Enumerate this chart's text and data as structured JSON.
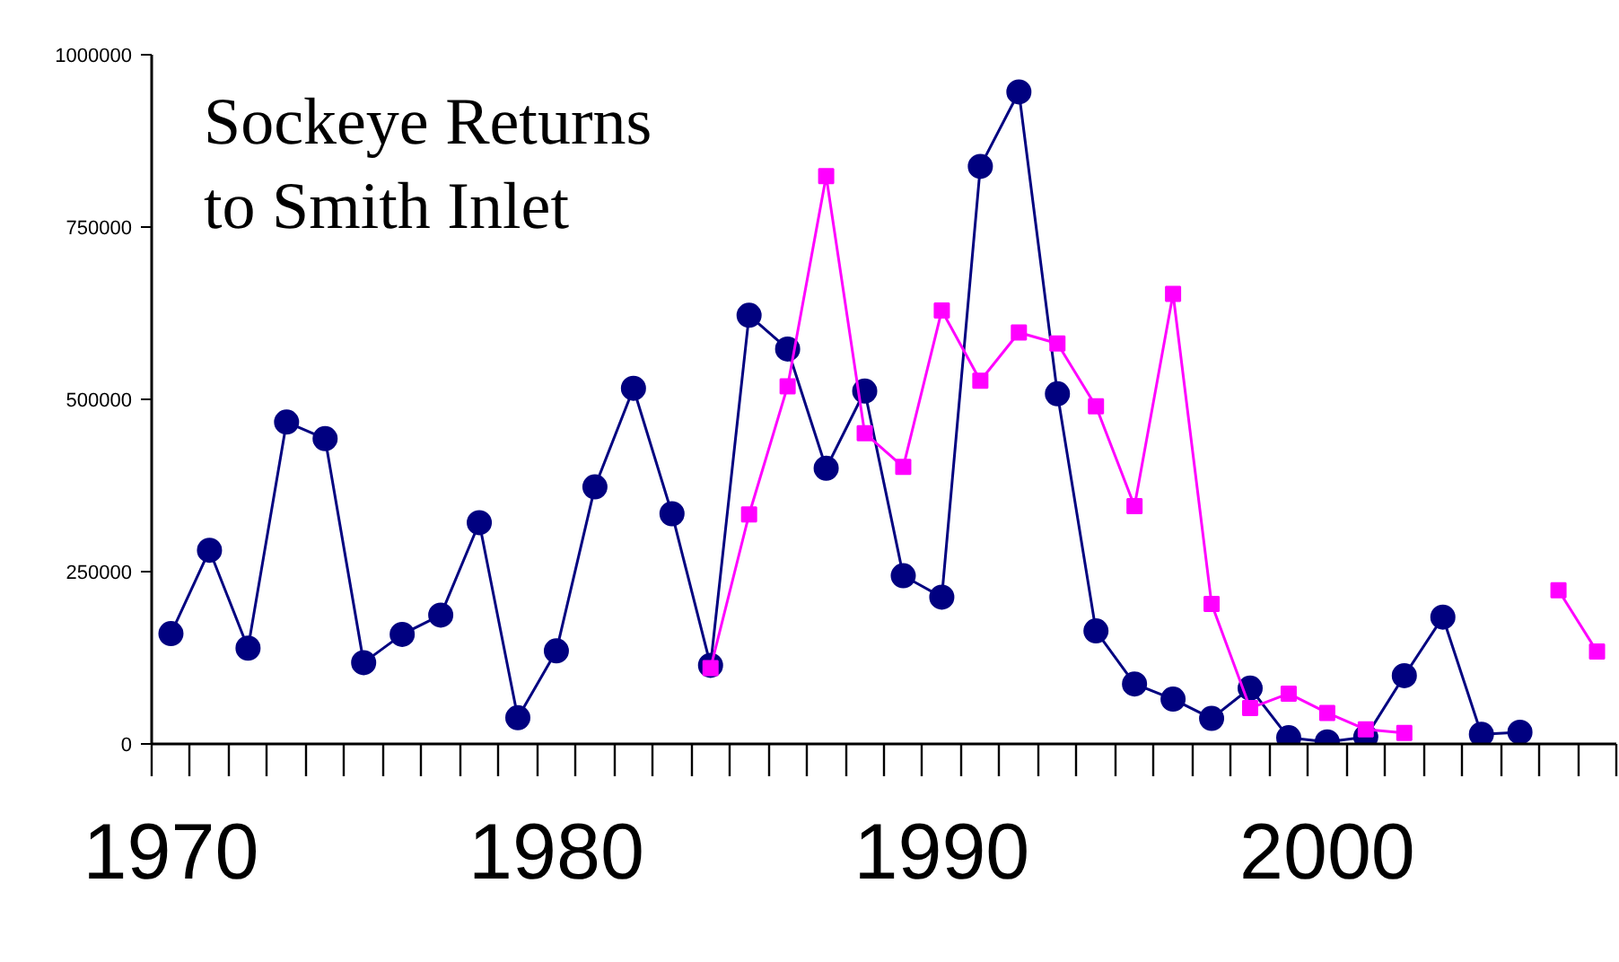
{
  "chart_data": {
    "type": "line",
    "title": "Sockeye Returns to Smith Inlet",
    "xlim": [
      1969.5,
      2007.5
    ],
    "xticks": [
      1970,
      1980,
      1990,
      2000
    ],
    "ylim": [
      0,
      1000000
    ],
    "yticks": [
      0,
      250000,
      500000,
      750000,
      1000000
    ],
    "grid": false,
    "line_style": "solid",
    "series": [
      {
        "color": "#000080",
        "marker": "circle",
        "x": [
          1970,
          1971,
          1972,
          1973,
          1974,
          1975,
          1976,
          1977,
          1978,
          1979,
          1980,
          1981,
          1982,
          1983,
          1984,
          1985,
          1986,
          1987,
          1988,
          1989,
          1990,
          1991,
          1992,
          1993,
          1994,
          1995,
          1996,
          1997,
          1998,
          1999,
          2000,
          2001,
          2002,
          2003,
          2004,
          2005
        ],
        "values": [
          160000,
          281000,
          139000,
          467000,
          443000,
          118000,
          159000,
          187000,
          321000,
          38000,
          135000,
          373000,
          516000,
          334000,
          114000,
          622000,
          573000,
          400000,
          512000,
          244000,
          213000,
          838000,
          946000,
          508000,
          164000,
          87000,
          65000,
          37000,
          81000,
          9000,
          3000,
          10000,
          99000,
          184000,
          14000,
          17000
        ]
      },
      {
        "color": "#ff00ff",
        "marker": "square",
        "x": [
          1984,
          1985,
          1986,
          1987,
          1988,
          1989,
          1990,
          1991,
          1992,
          1993,
          1994,
          1995,
          1996,
          1997,
          1998,
          1999,
          2000,
          2001,
          2002,
          2003,
          2004,
          2005,
          2006,
          2007
        ],
        "values": [
          110000,
          333000,
          519000,
          824000,
          451000,
          402000,
          629000,
          527000,
          597000,
          581000,
          490000,
          345000,
          653000,
          203000,
          52000,
          73000,
          45000,
          21000,
          16000,
          null,
          null,
          null,
          223000,
          134000
        ]
      }
    ]
  }
}
